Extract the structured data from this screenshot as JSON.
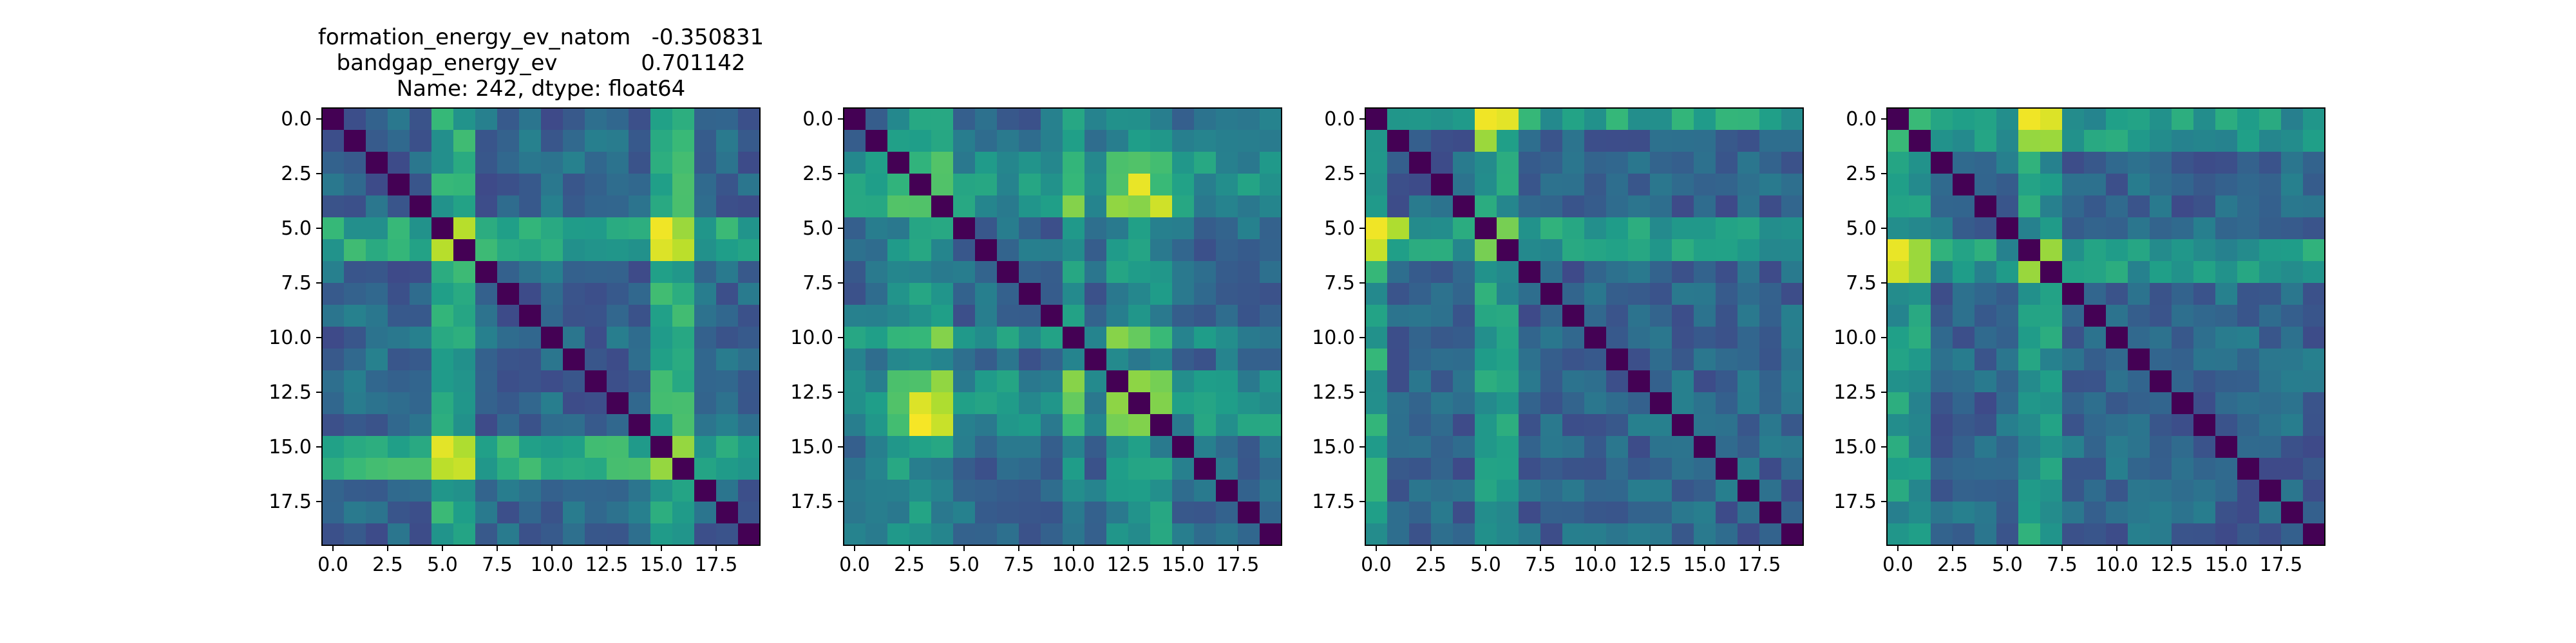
{
  "figure": {
    "title_lines": [
      "formation_energy_ev_natom   -0.350831",
      "bandgap_energy_ev            0.701142",
      "Name: 242, dtype: float64"
    ]
  },
  "chart_data": [
    {
      "type": "heatmap",
      "title": "formation_energy_ev_natom   -0.350831\nbandgap_energy_ev            0.701142\nName: 242, dtype: float64",
      "rows": 20,
      "cols": 20,
      "xlim": [
        -0.5,
        19.5
      ],
      "ylim": [
        19.5,
        -0.5
      ],
      "xticks": [
        0.0,
        2.5,
        5.0,
        7.5,
        10.0,
        12.5,
        15.0,
        17.5
      ],
      "xtick_labels": [
        "0.0",
        "2.5",
        "5.0",
        "7.5",
        "10.0",
        "12.5",
        "15.0",
        "17.5"
      ],
      "yticks": [
        0.0,
        2.5,
        5.0,
        7.5,
        10.0,
        12.5,
        15.0,
        17.5
      ],
      "ytick_labels": [
        "0.0",
        "2.5",
        "5.0",
        "7.5",
        "10.0",
        "12.5",
        "15.0",
        "17.5"
      ],
      "colormap": "viridis",
      "value_range": [
        0,
        1
      ],
      "diagonal_value": 0,
      "base_value": 0.33,
      "hot_indices": [
        5,
        6,
        15,
        16
      ],
      "hot_value": 0.72,
      "peak_cells": [
        [
          5,
          15,
          0.98
        ],
        [
          6,
          15,
          0.95
        ],
        [
          15,
          5,
          0.96
        ],
        [
          16,
          6,
          0.92
        ],
        [
          5,
          16,
          0.85
        ],
        [
          15,
          6,
          0.88
        ]
      ],
      "grid": false
    },
    {
      "type": "heatmap",
      "title": "",
      "rows": 20,
      "cols": 20,
      "xlim": [
        -0.5,
        19.5
      ],
      "ylim": [
        19.5,
        -0.5
      ],
      "xticks": [
        0.0,
        2.5,
        5.0,
        7.5,
        10.0,
        12.5,
        15.0,
        17.5
      ],
      "xtick_labels": [
        "0.0",
        "2.5",
        "5.0",
        "7.5",
        "10.0",
        "12.5",
        "15.0",
        "17.5"
      ],
      "yticks": [
        0.0,
        2.5,
        5.0,
        7.5,
        10.0,
        12.5,
        15.0,
        17.5
      ],
      "ytick_labels": [
        "0.0",
        "2.5",
        "5.0",
        "7.5",
        "10.0",
        "12.5",
        "15.0",
        "17.5"
      ],
      "colormap": "viridis",
      "value_range": [
        0,
        1
      ],
      "diagonal_value": 0,
      "base_value": 0.35,
      "hot_indices": [
        2,
        3,
        4,
        10,
        12,
        13,
        14
      ],
      "hot_value": 0.62,
      "peak_cells": [
        [
          3,
          13,
          0.97
        ],
        [
          4,
          14,
          0.93
        ],
        [
          13,
          3,
          0.95
        ],
        [
          14,
          3,
          0.99
        ],
        [
          14,
          4,
          0.92
        ],
        [
          13,
          4,
          0.88
        ]
      ],
      "grid": false
    },
    {
      "type": "heatmap",
      "title": "",
      "rows": 20,
      "cols": 20,
      "xlim": [
        -0.5,
        19.5
      ],
      "ylim": [
        19.5,
        -0.5
      ],
      "xticks": [
        0.0,
        2.5,
        5.0,
        7.5,
        10.0,
        12.5,
        15.0,
        17.5
      ],
      "xtick_labels": [
        "0.0",
        "2.5",
        "5.0",
        "7.5",
        "10.0",
        "12.5",
        "15.0",
        "17.5"
      ],
      "yticks": [
        0.0,
        2.5,
        5.0,
        7.5,
        10.0,
        12.5,
        15.0,
        17.5
      ],
      "ytick_labels": [
        "0.0",
        "2.5",
        "5.0",
        "7.5",
        "10.0",
        "12.5",
        "15.0",
        "17.5"
      ],
      "colormap": "viridis",
      "value_range": [
        0,
        1
      ],
      "diagonal_value": 0,
      "base_value": 0.33,
      "hot_indices": [
        0,
        5,
        6
      ],
      "hot_value": 0.68,
      "peak_cells": [
        [
          0,
          5,
          0.98
        ],
        [
          0,
          6,
          0.96
        ],
        [
          5,
          0,
          0.98
        ],
        [
          6,
          0,
          0.92
        ],
        [
          1,
          5,
          0.85
        ],
        [
          5,
          1,
          0.88
        ]
      ],
      "grid": false
    },
    {
      "type": "heatmap",
      "title": "",
      "rows": 20,
      "cols": 20,
      "xlim": [
        -0.5,
        19.5
      ],
      "ylim": [
        19.5,
        -0.5
      ],
      "xticks": [
        0.0,
        2.5,
        5.0,
        7.5,
        10.0,
        12.5,
        15.0,
        17.5
      ],
      "xtick_labels": [
        "0.0",
        "2.5",
        "5.0",
        "7.5",
        "10.0",
        "12.5",
        "15.0",
        "17.5"
      ],
      "yticks": [
        0.0,
        2.5,
        5.0,
        7.5,
        10.0,
        12.5,
        15.0,
        17.5
      ],
      "ytick_labels": [
        "0.0",
        "2.5",
        "5.0",
        "7.5",
        "10.0",
        "12.5",
        "15.0",
        "17.5"
      ],
      "colormap": "viridis",
      "value_range": [
        0,
        1
      ],
      "diagonal_value": 0,
      "base_value": 0.33,
      "hot_indices": [
        0,
        1,
        6,
        7
      ],
      "hot_value": 0.66,
      "peak_cells": [
        [
          0,
          6,
          0.98
        ],
        [
          0,
          7,
          0.95
        ],
        [
          6,
          0,
          0.97
        ],
        [
          7,
          0,
          0.93
        ],
        [
          6,
          1,
          0.85
        ],
        [
          1,
          6,
          0.84
        ]
      ],
      "grid": false
    }
  ]
}
